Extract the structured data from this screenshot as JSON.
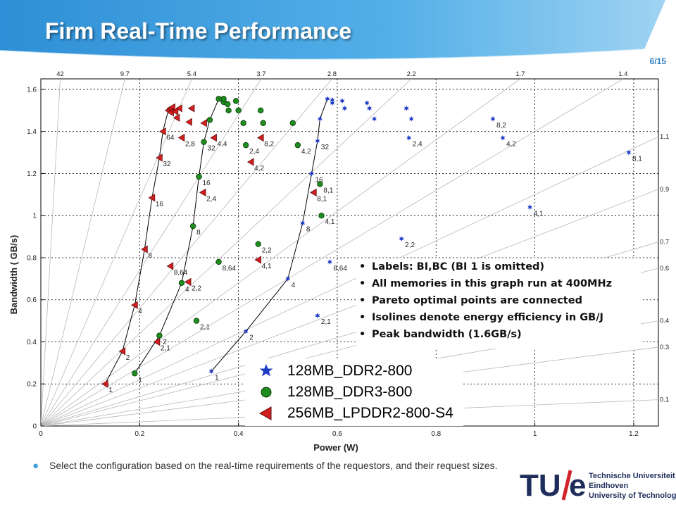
{
  "slide": {
    "title": "Firm Real-Time Performance",
    "page_number": "6/15",
    "caption": "Select the configuration based on the real-time requirements of the requestors, and their request sizes.",
    "logo": {
      "mark_letters": [
        "TU",
        "e"
      ],
      "lines": [
        "Technische Universiteit",
        "Eindhoven",
        "University of Technology"
      ]
    },
    "colors": {
      "header_blue": "#2e8fd6",
      "header_light": "#9fd3f2",
      "bullet_blue": "#3ba0dc",
      "logo_navy": "#1f2d5a",
      "logo_red": "#d2232a"
    }
  },
  "notes": {
    "items": [
      "Labels: BI,BC (BI 1 is omitted)",
      "All memories in this graph run at 400MHz",
      "Pareto optimal points are connected",
      "Isolines denote energy efficiency in GB/J",
      "Peak bandwidth  (1.6GB/s)"
    ]
  },
  "chart_data": {
    "type": "scatter",
    "xlabel": "Power (W)",
    "ylabel": "Bandwidth ( GB/s)",
    "xlim": [
      0,
      1.25
    ],
    "ylim": [
      0,
      1.65
    ],
    "xticks": [
      "0",
      "0.2",
      "0.4",
      "0.6",
      "0.8",
      "1",
      "1.2"
    ],
    "yticks": [
      "0",
      "0.2",
      "0.4",
      "0.6",
      "0.8",
      "1",
      "1.2",
      "1.4",
      "1.6"
    ],
    "grid": true,
    "legend_position": "bottom-center",
    "isolines": {
      "top_labels": [
        "42",
        "9.7",
        "5.4",
        "3.7",
        "2.8",
        "2.2",
        "1.7",
        "1.4"
      ],
      "right_labels": [
        "1.1",
        "0.9",
        "0.7",
        "0.6",
        "0.4",
        "0.3",
        "0.1"
      ],
      "slopes": [
        42,
        9.7,
        5.4,
        3.7,
        2.8,
        2.2,
        1.7,
        1.4,
        1.1,
        0.9,
        0.7,
        0.6,
        0.4,
        0.3,
        0.1
      ]
    },
    "series": [
      {
        "name": "128MB_DDR2-800",
        "marker": "star",
        "color": "#1f3cc8",
        "points": [
          {
            "x": 0.345,
            "y": 0.26,
            "label": "1"
          },
          {
            "x": 0.415,
            "y": 0.45,
            "label": "2"
          },
          {
            "x": 0.5,
            "y": 0.7,
            "label": "4"
          },
          {
            "x": 0.53,
            "y": 0.965,
            "label": "8"
          },
          {
            "x": 0.548,
            "y": 1.2,
            "label": "16"
          },
          {
            "x": 0.56,
            "y": 1.355,
            "label": "32"
          },
          {
            "x": 0.565,
            "y": 1.46
          },
          {
            "x": 0.58,
            "y": 1.555
          },
          {
            "x": 0.59,
            "y": 1.55
          },
          {
            "x": 0.59,
            "y": 1.535
          },
          {
            "x": 0.61,
            "y": 1.545
          },
          {
            "x": 0.615,
            "y": 1.51
          },
          {
            "x": 0.66,
            "y": 1.535
          },
          {
            "x": 0.665,
            "y": 1.51
          },
          {
            "x": 0.675,
            "y": 1.46
          },
          {
            "x": 0.74,
            "y": 1.51
          },
          {
            "x": 0.75,
            "y": 1.46
          },
          {
            "x": 0.745,
            "y": 1.37,
            "label": "2,4"
          },
          {
            "x": 0.915,
            "y": 1.46,
            "label": "8,2"
          },
          {
            "x": 0.935,
            "y": 1.37,
            "label": "4,2"
          },
          {
            "x": 1.19,
            "y": 1.3,
            "label": "8,1"
          },
          {
            "x": 0.99,
            "y": 1.04,
            "label": "4,1"
          },
          {
            "x": 0.73,
            "y": 0.89,
            "label": "2,2"
          },
          {
            "x": 0.585,
            "y": 0.78,
            "label": "8,64"
          },
          {
            "x": 0.56,
            "y": 0.525,
            "label": "2,1"
          }
        ],
        "pareto": [
          [
            0.345,
            0.26
          ],
          [
            0.415,
            0.45
          ],
          [
            0.5,
            0.7
          ],
          [
            0.53,
            0.965
          ],
          [
            0.548,
            1.2
          ],
          [
            0.56,
            1.355
          ],
          [
            0.565,
            1.46
          ],
          [
            0.58,
            1.555
          ]
        ]
      },
      {
        "name": "128MB_DDR3-800",
        "marker": "circle",
        "color": "#1e8c1e",
        "points": [
          {
            "x": 0.19,
            "y": 0.25,
            "label": "1"
          },
          {
            "x": 0.24,
            "y": 0.43,
            "label": "2"
          },
          {
            "x": 0.285,
            "y": 0.68,
            "label": "4"
          },
          {
            "x": 0.308,
            "y": 0.95,
            "label": "8"
          },
          {
            "x": 0.32,
            "y": 1.185,
            "label": "16"
          },
          {
            "x": 0.33,
            "y": 1.35,
            "label": "32"
          },
          {
            "x": 0.342,
            "y": 1.455
          },
          {
            "x": 0.36,
            "y": 1.555
          },
          {
            "x": 0.37,
            "y": 1.54
          },
          {
            "x": 0.378,
            "y": 1.53
          },
          {
            "x": 0.37,
            "y": 1.555
          },
          {
            "x": 0.38,
            "y": 1.5
          },
          {
            "x": 0.395,
            "y": 1.545
          },
          {
            "x": 0.4,
            "y": 1.5
          },
          {
            "x": 0.41,
            "y": 1.44
          },
          {
            "x": 0.445,
            "y": 1.5
          },
          {
            "x": 0.45,
            "y": 1.44
          },
          {
            "x": 0.51,
            "y": 1.44
          },
          {
            "x": 0.415,
            "y": 1.335,
            "label": "2,4"
          },
          {
            "x": 0.52,
            "y": 1.335,
            "label": "4,2"
          },
          {
            "x": 0.565,
            "y": 1.15,
            "label": "8,1"
          },
          {
            "x": 0.568,
            "y": 1.0,
            "label": "4,1"
          },
          {
            "x": 0.44,
            "y": 0.865,
            "label": "2,2"
          },
          {
            "x": 0.36,
            "y": 0.78,
            "label": "8,64"
          },
          {
            "x": 0.315,
            "y": 0.5,
            "label": "2,1"
          }
        ],
        "pareto": [
          [
            0.19,
            0.25
          ],
          [
            0.24,
            0.43
          ],
          [
            0.285,
            0.68
          ],
          [
            0.308,
            0.95
          ],
          [
            0.32,
            1.185
          ],
          [
            0.33,
            1.35
          ],
          [
            0.342,
            1.455
          ],
          [
            0.36,
            1.555
          ]
        ]
      },
      {
        "name": "256MB_LPDDR2-800-S4",
        "marker": "triangle-left",
        "color": "#d21e1e",
        "points": [
          {
            "x": 0.13,
            "y": 0.2,
            "label": "1"
          },
          {
            "x": 0.165,
            "y": 0.355,
            "label": "2"
          },
          {
            "x": 0.19,
            "y": 0.575,
            "label": "4"
          },
          {
            "x": 0.21,
            "y": 0.84,
            "label": "8"
          },
          {
            "x": 0.225,
            "y": 1.085,
            "label": "16"
          },
          {
            "x": 0.24,
            "y": 1.275,
            "label": "32"
          },
          {
            "x": 0.247,
            "y": 1.4,
            "label": "64"
          },
          {
            "x": 0.258,
            "y": 1.5
          },
          {
            "x": 0.262,
            "y": 1.51
          },
          {
            "x": 0.266,
            "y": 1.515
          },
          {
            "x": 0.263,
            "y": 1.49
          },
          {
            "x": 0.272,
            "y": 1.495
          },
          {
            "x": 0.275,
            "y": 1.465
          },
          {
            "x": 0.28,
            "y": 1.51
          },
          {
            "x": 0.305,
            "y": 1.51
          },
          {
            "x": 0.3,
            "y": 1.445
          },
          {
            "x": 0.33,
            "y": 1.44
          },
          {
            "x": 0.285,
            "y": 1.37,
            "label": "2,8"
          },
          {
            "x": 0.35,
            "y": 1.37,
            "label": "4,4"
          },
          {
            "x": 0.445,
            "y": 1.37,
            "label": "8,2"
          },
          {
            "x": 0.425,
            "y": 1.255,
            "label": "4,2"
          },
          {
            "x": 0.328,
            "y": 1.11,
            "label": "2,4"
          },
          {
            "x": 0.262,
            "y": 0.76,
            "label": "8,64"
          },
          {
            "x": 0.298,
            "y": 0.685,
            "label": "2,2"
          },
          {
            "x": 0.44,
            "y": 0.79,
            "label": "4,1"
          },
          {
            "x": 0.552,
            "y": 1.11,
            "label": "8,1"
          },
          {
            "x": 0.235,
            "y": 0.4,
            "label": "2,1"
          }
        ],
        "pareto": [
          [
            0.13,
            0.2
          ],
          [
            0.165,
            0.355
          ],
          [
            0.19,
            0.575
          ],
          [
            0.21,
            0.84
          ],
          [
            0.225,
            1.085
          ],
          [
            0.24,
            1.275
          ],
          [
            0.247,
            1.4
          ],
          [
            0.258,
            1.5
          ],
          [
            0.266,
            1.515
          ]
        ]
      }
    ]
  }
}
